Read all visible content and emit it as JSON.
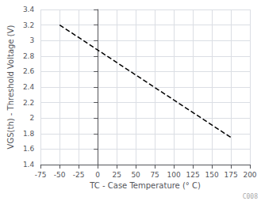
{
  "chart_data": {
    "type": "line",
    "x": [
      -50,
      175
    ],
    "values": [
      3.2,
      1.75
    ],
    "xlabel": "TC - Case Temperature (° C)",
    "ylabel": "VGS(th) - Threshold Voltage (V)",
    "xlim": [
      -75,
      200
    ],
    "ylim": [
      1.4,
      3.4
    ],
    "xticks": [
      -75,
      -50,
      -25,
      0,
      25,
      50,
      75,
      100,
      125,
      150,
      175,
      200
    ],
    "yticks": [
      1.4,
      1.6,
      1.8,
      2.0,
      2.2,
      2.4,
      2.6,
      2.8,
      3.0,
      3.2,
      3.4
    ],
    "color": "#000000",
    "line_style": "dashed",
    "grid": true,
    "annotations": [
      "C008"
    ]
  }
}
